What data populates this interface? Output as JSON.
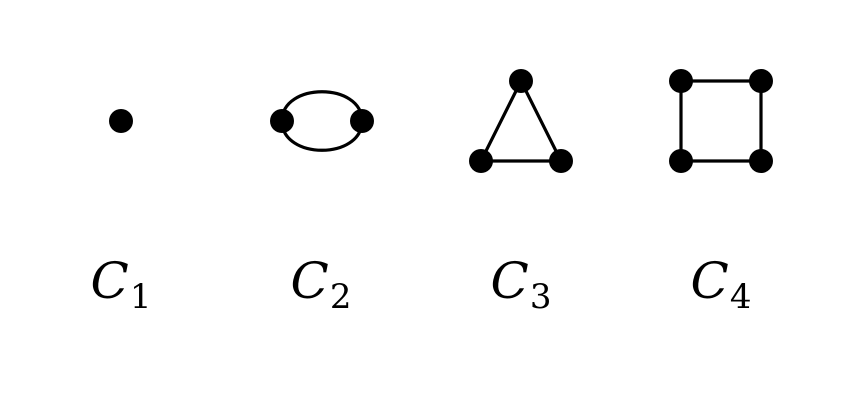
{
  "graphs": [
    {
      "name": "C1",
      "letter": "C",
      "subscript": "1",
      "vertices": 1
    },
    {
      "name": "C2",
      "letter": "C",
      "subscript": "2",
      "vertices": 2
    },
    {
      "name": "C3",
      "letter": "C",
      "subscript": "3",
      "vertices": 3
    },
    {
      "name": "C4",
      "letter": "C",
      "subscript": "4",
      "vertices": 4
    }
  ],
  "colors": {
    "stroke": "#000000",
    "background": "#ffffff"
  }
}
